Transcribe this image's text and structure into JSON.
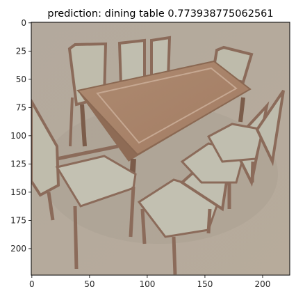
{
  "chart_data": {
    "type": "image",
    "title": "prediction: dining table 0.773938775062561",
    "xlabel": "",
    "ylabel": "",
    "xlim": [
      -0.5,
      223.5
    ],
    "ylim": [
      223.5,
      -0.5
    ],
    "xticks": [
      0,
      50,
      100,
      150,
      200
    ],
    "yticks": [
      0,
      25,
      50,
      75,
      100,
      125,
      150,
      175,
      200
    ],
    "xtick_labels": [
      "0",
      "50",
      "100",
      "150",
      "200"
    ],
    "ytick_labels": [
      "0",
      "25",
      "50",
      "75",
      "100",
      "125",
      "150",
      "175",
      "200"
    ],
    "grid": false,
    "image_subject": "dining table with eight upholstered chairs",
    "colors": {
      "background": "#b5aa9c",
      "table_top": "#a98268",
      "table_edge": "#8e6b55",
      "chair_frame": "#8b6b5a",
      "chair_fabric": "#c2c0b0",
      "axes": "#000000"
    }
  }
}
